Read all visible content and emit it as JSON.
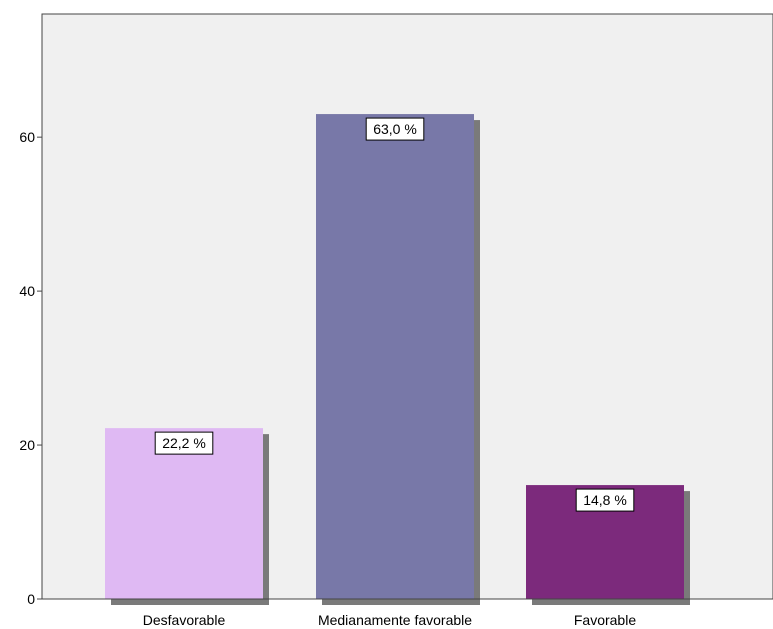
{
  "chart_data": {
    "type": "bar",
    "title": "",
    "xlabel": "",
    "ylabel": "",
    "categories": [
      "Desfavorable",
      "Medianamente favorable",
      "Favorable"
    ],
    "values": [
      22.2,
      63.0,
      14.8
    ],
    "data_labels": [
      "22,2 %",
      "63,0 %",
      "14,8 %"
    ],
    "colors": [
      "#dfb9f3",
      "#7878a8",
      "#7c2a7c"
    ],
    "shadow_color": "#7a7a7a",
    "plot_background": "#f0f0f0",
    "ylim": [
      0,
      76
    ],
    "yticks": [
      0,
      20,
      40,
      60
    ],
    "ytick_labels": [
      "0",
      "20",
      "40",
      "60"
    ],
    "grid": false,
    "legend": "none"
  }
}
